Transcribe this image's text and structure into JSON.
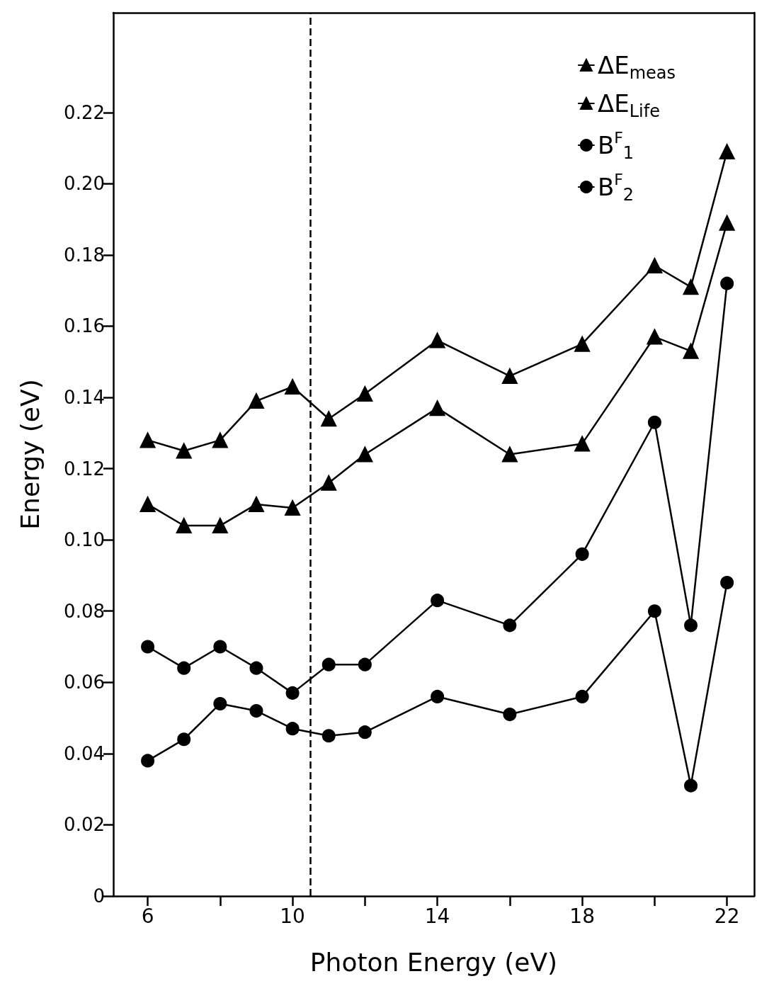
{
  "chart_data": {
    "type": "line",
    "xlabel": "Photon Energy (eV)",
    "ylabel": "Energy (eV)",
    "x": [
      6,
      7,
      8,
      9,
      10,
      11,
      12,
      14,
      16,
      18,
      20,
      21,
      22
    ],
    "series": [
      {
        "name": "ΔE$_{meas}$",
        "color": "#000000",
        "marker": "triangle",
        "values": [
          0.128,
          0.125,
          0.128,
          0.139,
          0.143,
          0.134,
          0.141,
          0.156,
          0.146,
          0.155,
          0.177,
          0.171,
          0.209
        ]
      },
      {
        "name": "ΔE$_{Life}$",
        "color": "#000000",
        "marker": "triangle",
        "values": [
          0.11,
          0.104,
          0.104,
          0.11,
          0.109,
          0.116,
          0.124,
          0.137,
          0.124,
          0.127,
          0.157,
          0.153,
          0.189
        ]
      },
      {
        "name": "B$^{F}$$_{1}$",
        "color": "#000000",
        "marker": "circle",
        "values": [
          0.07,
          0.064,
          0.07,
          0.064,
          0.057,
          0.065,
          0.065,
          0.083,
          0.076,
          0.096,
          0.133,
          0.076,
          0.172
        ]
      },
      {
        "name": "B$^{F}$$_{2}$",
        "color": "#000000",
        "marker": "circle",
        "values": [
          0.038,
          0.044,
          0.054,
          0.052,
          0.047,
          0.045,
          0.046,
          0.056,
          0.051,
          0.056,
          0.08,
          0.031,
          0.088
        ]
      }
    ],
    "xlim": [
      5.05,
      22.75
    ],
    "xticks": [
      6,
      {
        "value": 8,
        "label": null
      },
      10,
      {
        "value": 12,
        "label": null
      },
      14,
      {
        "value": 16,
        "label": null
      },
      18,
      {
        "value": 20,
        "label": null
      },
      22
    ],
    "ylim": [
      0,
      0.248
    ],
    "yticks": [
      0,
      0.02,
      0.04,
      0.06,
      0.08,
      {
        "value": 0.1,
        "label": "0.10"
      },
      0.12,
      0.14,
      0.16,
      0.18,
      {
        "value": 0.2,
        "label": "0.20"
      },
      0.22
    ],
    "ref_lines": [
      {
        "axis": "x",
        "value": 10.5,
        "line_style": "dashed",
        "color": "#000000"
      }
    ],
    "legend": "top right",
    "grid": false,
    "line_style": "solid"
  }
}
